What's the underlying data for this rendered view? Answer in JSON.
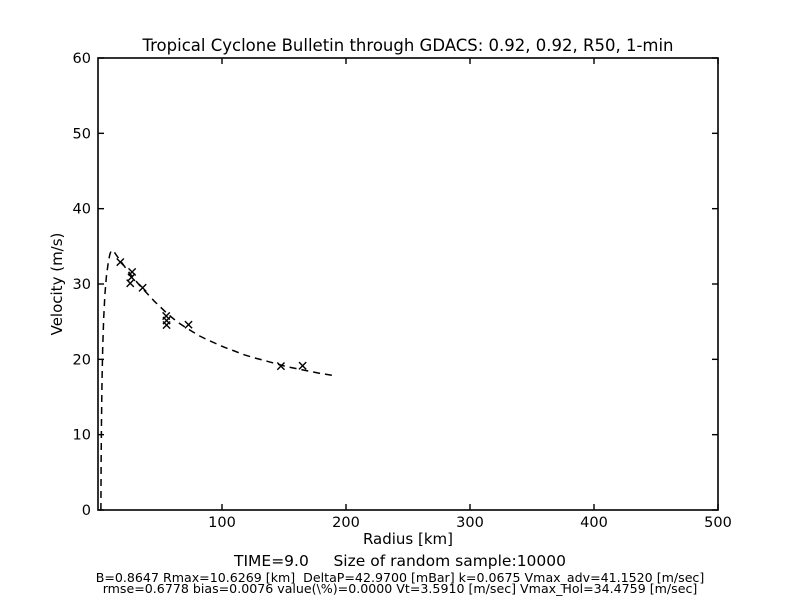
{
  "figure": {
    "background": "#ffffff",
    "foreground": "#000000"
  },
  "chart_data": {
    "type": "line",
    "title": "Tropical Cyclone Bulletin through GDACS: 0.92, 0.92, R50, 1-min",
    "xlabel": "Radius [km]",
    "ylabel": "Velocity (m/s)",
    "xlim": [
      0,
      500
    ],
    "ylim": [
      0,
      60
    ],
    "xticks": [
      100,
      200,
      300,
      400,
      500
    ],
    "yticks": [
      0,
      10,
      20,
      30,
      40,
      50,
      60
    ],
    "grid": false,
    "legend": "none",
    "series": [
      {
        "name": "holland-model-curve",
        "type": "line",
        "linestyle": "dashed",
        "color": "#000000",
        "points": [
          [
            2.3,
            0
          ],
          [
            2.5,
            6
          ],
          [
            2.8,
            12
          ],
          [
            3.2,
            17
          ],
          [
            3.8,
            21.5
          ],
          [
            4.6,
            25.5
          ],
          [
            5.6,
            28.6
          ],
          [
            6.8,
            31.0
          ],
          [
            8.2,
            32.8
          ],
          [
            9.5,
            33.9
          ],
          [
            10.63,
            34.45
          ],
          [
            12,
            34.4
          ],
          [
            13.5,
            34.15
          ],
          [
            15,
            33.8
          ],
          [
            17,
            33.3
          ],
          [
            19,
            32.85
          ],
          [
            21.5,
            32.3
          ],
          [
            24,
            31.75
          ],
          [
            27,
            31.1
          ],
          [
            30,
            30.5
          ],
          [
            33.5,
            29.85
          ],
          [
            37,
            29.2
          ],
          [
            41,
            28.5
          ],
          [
            45.5,
            27.7
          ],
          [
            50,
            27.0
          ],
          [
            55,
            26.2
          ],
          [
            60,
            25.5
          ],
          [
            65,
            24.85
          ],
          [
            70,
            24.3
          ],
          [
            76,
            23.7
          ],
          [
            82,
            23.1
          ],
          [
            88,
            22.6
          ],
          [
            95,
            22.1
          ],
          [
            102,
            21.6
          ],
          [
            110,
            21.1
          ],
          [
            118,
            20.6
          ],
          [
            126,
            20.2
          ],
          [
            135,
            19.8
          ],
          [
            144,
            19.4
          ],
          [
            153,
            19.0
          ],
          [
            162,
            18.7
          ],
          [
            171,
            18.4
          ],
          [
            180,
            18.1
          ],
          [
            190,
            17.85
          ]
        ]
      },
      {
        "name": "bulletin-sample-points",
        "type": "scatter",
        "marker": "x",
        "color": "#000000",
        "points": [
          [
            18,
            32.9
          ],
          [
            27.5,
            31.6
          ],
          [
            27,
            30.9
          ],
          [
            26,
            30.1
          ],
          [
            36,
            29.5
          ],
          [
            55,
            25.75
          ],
          [
            55.3,
            25.15
          ],
          [
            55.3,
            24.55
          ],
          [
            73,
            24.6
          ],
          [
            147.5,
            19.1
          ],
          [
            165,
            19.15
          ]
        ]
      }
    ],
    "captions": {
      "time_line": "TIME=9.0     Size of random sample:10000",
      "params_line1": "B=0.8647 Rmax=10.6269 [km]  DeltaP=42.9700 [mBar] k=0.0675 Vmax_adv=41.1520 [m/sec]",
      "params_line2": "rmse=0.6778 bias=0.0076 value(\\%)=0.0000 Vt=3.5910 [m/sec] Vmax_Hol=34.4759 [m/sec]"
    }
  }
}
